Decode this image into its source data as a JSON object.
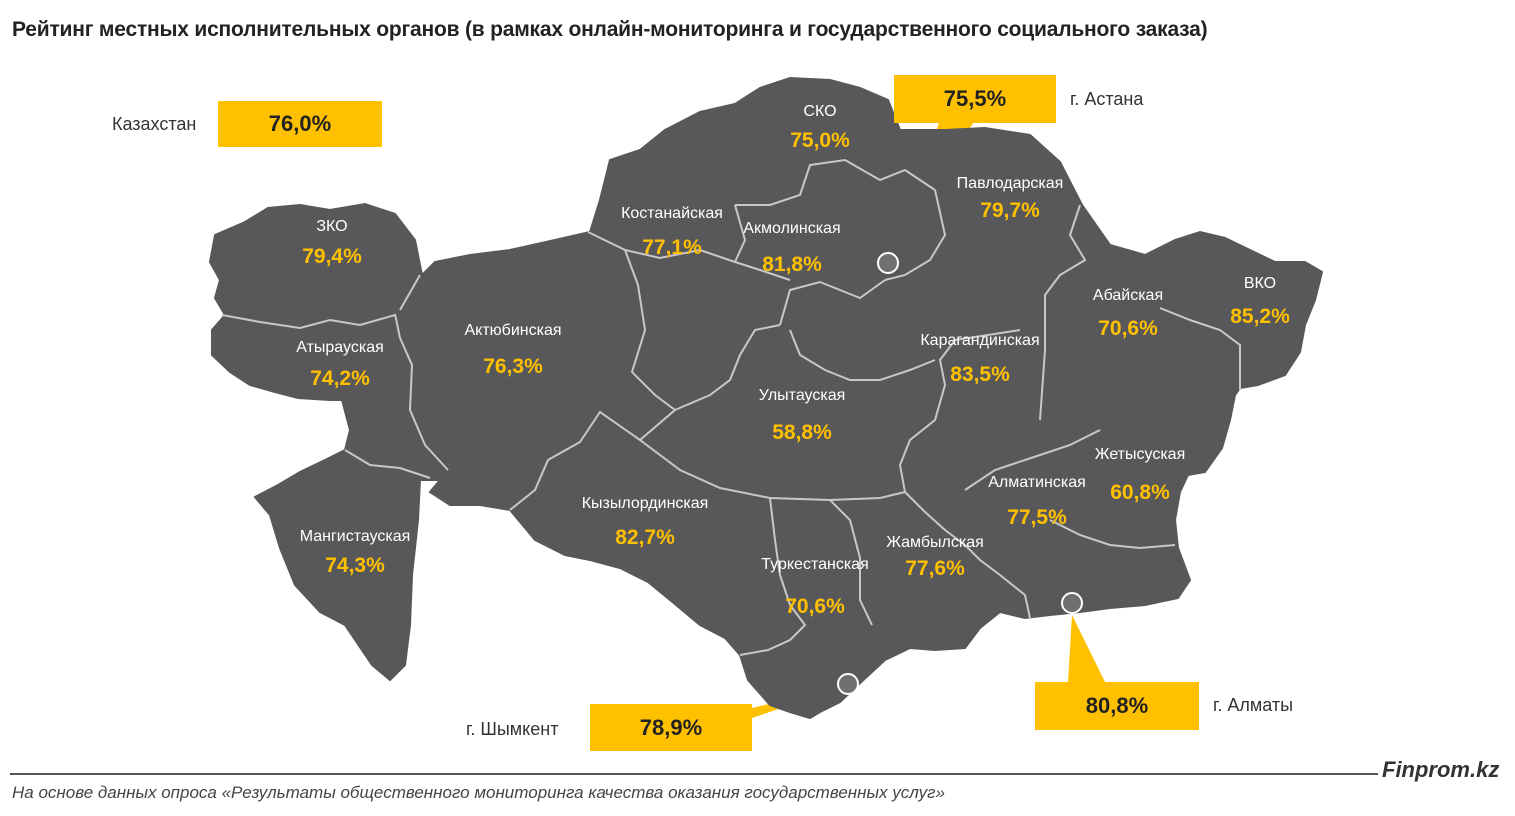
{
  "title": "Рейтинг местных исполнительных органов (в рамках онлайн-мониторинга и государственного социального заказа)",
  "kazakhstan": {
    "label": "Казахстан",
    "value": "76,0%"
  },
  "callouts": {
    "astana": {
      "label": "г. Астана",
      "value": "75,5%"
    },
    "almaty": {
      "label": "г. Алматы",
      "value": "80,8%"
    },
    "shymkent": {
      "label": "г. Шымкент",
      "value": "78,9%"
    }
  },
  "regions": [
    {
      "id": "zko",
      "name": "ЗКО",
      "value": "79,4%"
    },
    {
      "id": "atyrau",
      "name": "Атырауская",
      "value": "74,2%"
    },
    {
      "id": "mangistau",
      "name": "Мангистауская",
      "value": "74,3%"
    },
    {
      "id": "aktobe",
      "name": "Актюбинская",
      "value": "76,3%"
    },
    {
      "id": "kostanay",
      "name": "Костанайская",
      "value": "77,1%"
    },
    {
      "id": "sko",
      "name": "СКО",
      "value": "75,0%"
    },
    {
      "id": "akmola",
      "name": "Акмолинская",
      "value": "81,8%"
    },
    {
      "id": "pavlodar",
      "name": "Павлодарская",
      "value": "79,7%"
    },
    {
      "id": "vko",
      "name": "ВКО",
      "value": "85,2%"
    },
    {
      "id": "abay",
      "name": "Абайская",
      "value": "70,6%"
    },
    {
      "id": "karaganda",
      "name": "Карагандинская",
      "value": "83,5%"
    },
    {
      "id": "ulytau",
      "name": "Улытауская",
      "value": "58,8%"
    },
    {
      "id": "kyzylorda",
      "name": "Кызылординская",
      "value": "82,7%"
    },
    {
      "id": "turkestan",
      "name": "Туркестанская",
      "value": "70,6%"
    },
    {
      "id": "zhambyl",
      "name": "Жамбылская",
      "value": "77,6%"
    },
    {
      "id": "almaty-region",
      "name": "Алматинская",
      "value": "77,5%"
    },
    {
      "id": "zhetysu",
      "name": "Жетысуская",
      "value": "60,8%"
    }
  ],
  "brand": "Finprom.kz",
  "source": "На основе данных опроса «Результаты общественного мониторинга качества оказания государственных услуг»",
  "colors": {
    "map_fill": "#58585A",
    "border": "#BFBFBF",
    "accent": "#FFC000"
  }
}
